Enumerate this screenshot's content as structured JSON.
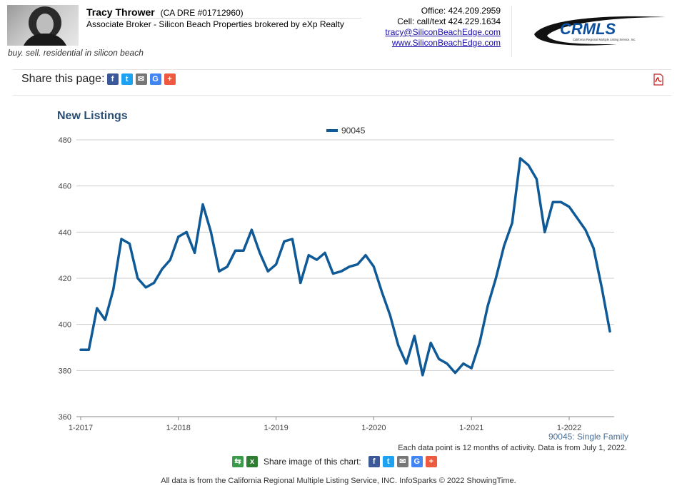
{
  "header": {
    "agent_name": "Tracy Thrower",
    "agent_dre": "(CA DRE #01712960)",
    "agent_title": "Associate Broker - Silicon Beach Properties brokered by eXp Realty",
    "tagline": "buy. sell. residential in silicon beach",
    "office": "Office: 424.209.2959",
    "cell": "Cell: call/text 424.229.1634",
    "email": "tracy@SiliconBeachEdge.com",
    "website": "www.SiliconBeachEdge.com",
    "logo_text": "CRMLS",
    "logo_subtext": "California Regional Multiple Listing Service, Inc."
  },
  "share": {
    "label": "Share this page:",
    "icons": [
      "facebook-icon",
      "twitter-icon",
      "email-icon",
      "google-icon",
      "plus-icon"
    ]
  },
  "colors": {
    "series": "#0f5a96",
    "title": "#2a4d75",
    "grid": "#cccccc"
  },
  "chart_data": {
    "type": "line",
    "title": "New Listings",
    "legend_position": "top-center",
    "grid": true,
    "ylim": [
      360,
      480
    ],
    "yticks": [
      360,
      380,
      400,
      420,
      440,
      460,
      480
    ],
    "xticks": [
      "1-2017",
      "1-2018",
      "1-2019",
      "1-2020",
      "1-2021",
      "1-2022"
    ],
    "x_start": "2017-01",
    "x_end": "2022-06",
    "series": [
      {
        "name": "90045",
        "values": [
          389,
          389,
          407,
          402,
          415,
          437,
          435,
          420,
          416,
          418,
          424,
          428,
          438,
          440,
          431,
          452,
          440,
          423,
          425,
          432,
          432,
          441,
          431,
          423,
          426,
          436,
          437,
          418,
          430,
          428,
          431,
          422,
          423,
          425,
          426,
          430,
          425,
          414,
          404,
          391,
          383,
          395,
          378,
          392,
          385,
          383,
          379,
          383,
          381,
          392,
          408,
          420,
          434,
          444,
          472,
          469,
          463,
          440,
          453,
          453,
          451,
          446,
          441,
          433,
          416,
          397
        ]
      }
    ],
    "series_caption": "90045: Single Family",
    "note": "Each data point is 12 months of activity. Data is from July 1, 2022."
  },
  "chart_share": {
    "label": "Share image of this chart:"
  },
  "footer": "All data is from the California Regional Multiple Listing Service, INC. InfoSparks © 2022 ShowingTime."
}
